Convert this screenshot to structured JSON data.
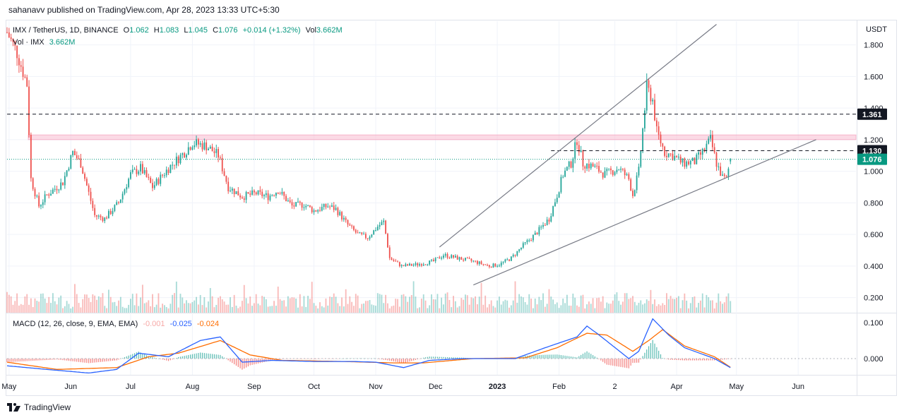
{
  "attribution": "sahanavv published on TradingView.com, Apr 28, 2023 13:33 UTC+5:30",
  "legend": {
    "symbol": "IMX / TetherUS, 1D, BINANCE",
    "open_label": "O",
    "open": "1.062",
    "high_label": "H",
    "high": "1.083",
    "low_label": "L",
    "low": "1.045",
    "close_label": "C",
    "close": "1.076",
    "change": "+0.014 (+1.32%)",
    "vol_label": "Vol",
    "vol": "3.662M",
    "volume_title": "Vol · IMX",
    "volume_value": "3.662M",
    "macd_title": "MACD (12, 26, close, 9, EMA, EMA)",
    "macd_hist": "-0.001",
    "macd_line": "-0.025",
    "macd_signal": "-0.024"
  },
  "logo_text": "TradingView",
  "price_axis": {
    "currency": "USDT",
    "ticks": [
      "1.800",
      "1.600",
      "1.400",
      "1.200",
      "1.000",
      "0.800",
      "0.600",
      "0.400",
      "0.200"
    ],
    "tick_values": [
      1.8,
      1.6,
      1.4,
      1.2,
      1.0,
      0.8,
      0.6,
      0.4,
      0.2
    ]
  },
  "macd_axis": {
    "ticks": [
      "0.100",
      "0.000"
    ],
    "tick_values": [
      0.1,
      0.0
    ]
  },
  "time_axis": {
    "labels": [
      "May",
      "Jun",
      "Jul",
      "Aug",
      "Sep",
      "Oct",
      "Nov",
      "Dec",
      "2023",
      "Feb",
      "2",
      "Apr",
      "May",
      "Jun"
    ]
  },
  "price_tags": [
    {
      "value": 1.361,
      "label": "1.361",
      "color": "#131722"
    },
    {
      "value": 1.13,
      "label": "1.130",
      "color": "#131722"
    },
    {
      "value": 1.076,
      "label": "1.076",
      "color": "#089981"
    }
  ],
  "colors": {
    "up": "#26a69a",
    "down": "#ef5350",
    "resistance_zone": "#f8bbd0",
    "macd_line": "#2962ff",
    "signal_line": "#ff6d00",
    "trendline": "#787b86"
  },
  "chart_data": {
    "type": "candlestick",
    "symbol": "IMX / TetherUS",
    "timeframe": "1D",
    "exchange": "BINANCE",
    "x_range": [
      "2022-04-30",
      "2023-06-30"
    ],
    "price_range": [
      0.1,
      1.95
    ],
    "price_ylim": [
      0.1,
      1.95
    ],
    "candle_ohlc_anchors": [
      [
        "2022-04-30",
        1.88
      ],
      [
        "2022-05-05",
        1.75
      ],
      [
        "2022-05-10",
        1.55
      ],
      [
        "2022-05-12",
        0.95
      ],
      [
        "2022-05-16",
        0.78
      ],
      [
        "2022-05-20",
        0.85
      ],
      [
        "2022-05-28",
        0.93
      ],
      [
        "2022-06-02",
        1.12
      ],
      [
        "2022-06-06",
        1.05
      ],
      [
        "2022-06-13",
        0.72
      ],
      [
        "2022-06-18",
        0.7
      ],
      [
        "2022-06-25",
        0.8
      ],
      [
        "2022-07-01",
        0.98
      ],
      [
        "2022-07-06",
        1.02
      ],
      [
        "2022-07-12",
        0.9
      ],
      [
        "2022-07-20",
        1.02
      ],
      [
        "2022-07-28",
        1.12
      ],
      [
        "2022-08-01",
        1.18
      ],
      [
        "2022-08-08",
        1.16
      ],
      [
        "2022-08-14",
        1.1
      ],
      [
        "2022-08-19",
        0.9
      ],
      [
        "2022-08-26",
        0.84
      ],
      [
        "2022-09-02",
        0.86
      ],
      [
        "2022-09-08",
        0.84
      ],
      [
        "2022-09-13",
        0.88
      ],
      [
        "2022-09-20",
        0.78
      ],
      [
        "2022-09-26",
        0.79
      ],
      [
        "2022-10-01",
        0.75
      ],
      [
        "2022-10-08",
        0.78
      ],
      [
        "2022-10-12",
        0.76
      ],
      [
        "2022-10-18",
        0.66
      ],
      [
        "2022-10-23",
        0.6
      ],
      [
        "2022-10-28",
        0.58
      ],
      [
        "2022-11-02",
        0.65
      ],
      [
        "2022-11-05",
        0.68
      ],
      [
        "2022-11-08",
        0.45
      ],
      [
        "2022-11-14",
        0.4
      ],
      [
        "2022-11-22",
        0.41
      ],
      [
        "2022-11-30",
        0.43
      ],
      [
        "2022-12-05",
        0.47
      ],
      [
        "2022-12-12",
        0.45
      ],
      [
        "2022-12-20",
        0.43
      ],
      [
        "2022-12-28",
        0.4
      ],
      [
        "2023-01-02",
        0.41
      ],
      [
        "2023-01-08",
        0.45
      ],
      [
        "2023-01-14",
        0.53
      ],
      [
        "2023-01-20",
        0.6
      ],
      [
        "2023-01-27",
        0.7
      ],
      [
        "2023-01-31",
        0.85
      ],
      [
        "2023-02-03",
        0.98
      ],
      [
        "2023-02-07",
        1.05
      ],
      [
        "2023-02-10",
        1.2
      ],
      [
        "2023-02-13",
        1.05
      ],
      [
        "2023-02-18",
        1.03
      ],
      [
        "2023-02-24",
        0.98
      ],
      [
        "2023-03-03",
        1.02
      ],
      [
        "2023-03-08",
        0.95
      ],
      [
        "2023-03-10",
        0.85
      ],
      [
        "2023-03-13",
        1.0
      ],
      [
        "2023-03-17",
        1.53
      ],
      [
        "2023-03-20",
        1.45
      ],
      [
        "2023-03-22",
        1.25
      ],
      [
        "2023-03-26",
        1.12
      ],
      [
        "2023-03-30",
        1.1
      ],
      [
        "2023-04-04",
        1.05
      ],
      [
        "2023-04-10",
        1.06
      ],
      [
        "2023-04-14",
        1.12
      ],
      [
        "2023-04-18",
        1.2
      ],
      [
        "2023-04-21",
        1.05
      ],
      [
        "2023-04-24",
        0.96
      ],
      [
        "2023-04-26",
        0.95
      ],
      [
        "2023-04-28",
        1.076
      ]
    ],
    "last_candle": {
      "date": "2023-04-28",
      "open": 1.062,
      "high": 1.083,
      "low": 1.045,
      "close": 1.076,
      "volume": "3.662M"
    },
    "horizontal_levels": [
      {
        "value": 1.361,
        "style": "dashed"
      },
      {
        "value": 1.13,
        "style": "dashed",
        "from": "2023-01-28"
      },
      {
        "value": 1.076,
        "style": "dotted"
      }
    ],
    "resistance_zone": [
      1.2,
      1.23
    ],
    "trendlines": [
      {
        "from": [
          "2022-12-03",
          0.52
        ],
        "to": [
          "2023-04-21",
          1.93
        ]
      },
      {
        "from": [
          "2022-12-20",
          0.28
        ],
        "to": [
          "2023-06-10",
          1.2
        ]
      }
    ],
    "macd": {
      "params": "12, 26, close, 9, EMA, EMA",
      "ylim": [
        -0.045,
        0.125
      ],
      "macd_anchors": [
        [
          "2022-04-30",
          -0.02
        ],
        [
          "2022-05-20",
          -0.03
        ],
        [
          "2022-06-10",
          -0.04
        ],
        [
          "2022-06-24",
          -0.03
        ],
        [
          "2022-07-05",
          0.015
        ],
        [
          "2022-07-20",
          0.005
        ],
        [
          "2022-08-05",
          0.05
        ],
        [
          "2022-08-15",
          0.06
        ],
        [
          "2022-08-26",
          -0.01
        ],
        [
          "2022-09-10",
          -0.005
        ],
        [
          "2022-10-01",
          -0.008
        ],
        [
          "2022-10-20",
          -0.008
        ],
        [
          "2022-11-01",
          -0.01
        ],
        [
          "2022-11-15",
          -0.025
        ],
        [
          "2022-11-28",
          -0.005
        ],
        [
          "2022-12-15",
          0.0
        ],
        [
          "2023-01-10",
          0.0
        ],
        [
          "2023-01-25",
          0.03
        ],
        [
          "2023-02-10",
          0.06
        ],
        [
          "2023-02-15",
          0.09
        ],
        [
          "2023-02-20",
          0.07
        ],
        [
          "2023-03-08",
          0.0
        ],
        [
          "2023-03-13",
          0.02
        ],
        [
          "2023-03-20",
          0.11
        ],
        [
          "2023-03-28",
          0.065
        ],
        [
          "2023-04-05",
          0.03
        ],
        [
          "2023-04-20",
          0.0
        ],
        [
          "2023-04-28",
          -0.025
        ]
      ],
      "signal_anchors": [
        [
          "2022-04-30",
          -0.01
        ],
        [
          "2022-05-25",
          -0.03
        ],
        [
          "2022-06-24",
          -0.025
        ],
        [
          "2022-07-10",
          0.005
        ],
        [
          "2022-07-25",
          0.015
        ],
        [
          "2022-08-15",
          0.05
        ],
        [
          "2022-08-30",
          0.01
        ],
        [
          "2022-09-15",
          -0.005
        ],
        [
          "2022-10-15",
          -0.008
        ],
        [
          "2022-11-10",
          -0.012
        ],
        [
          "2022-11-25",
          -0.012
        ],
        [
          "2022-12-20",
          0.0
        ],
        [
          "2023-01-15",
          0.002
        ],
        [
          "2023-01-31",
          0.03
        ],
        [
          "2023-02-15",
          0.07
        ],
        [
          "2023-02-25",
          0.065
        ],
        [
          "2023-03-10",
          0.02
        ],
        [
          "2023-03-18",
          0.05
        ],
        [
          "2023-03-25",
          0.08
        ],
        [
          "2023-04-05",
          0.035
        ],
        [
          "2023-04-20",
          0.005
        ],
        [
          "2023-04-28",
          -0.024
        ]
      ]
    }
  }
}
